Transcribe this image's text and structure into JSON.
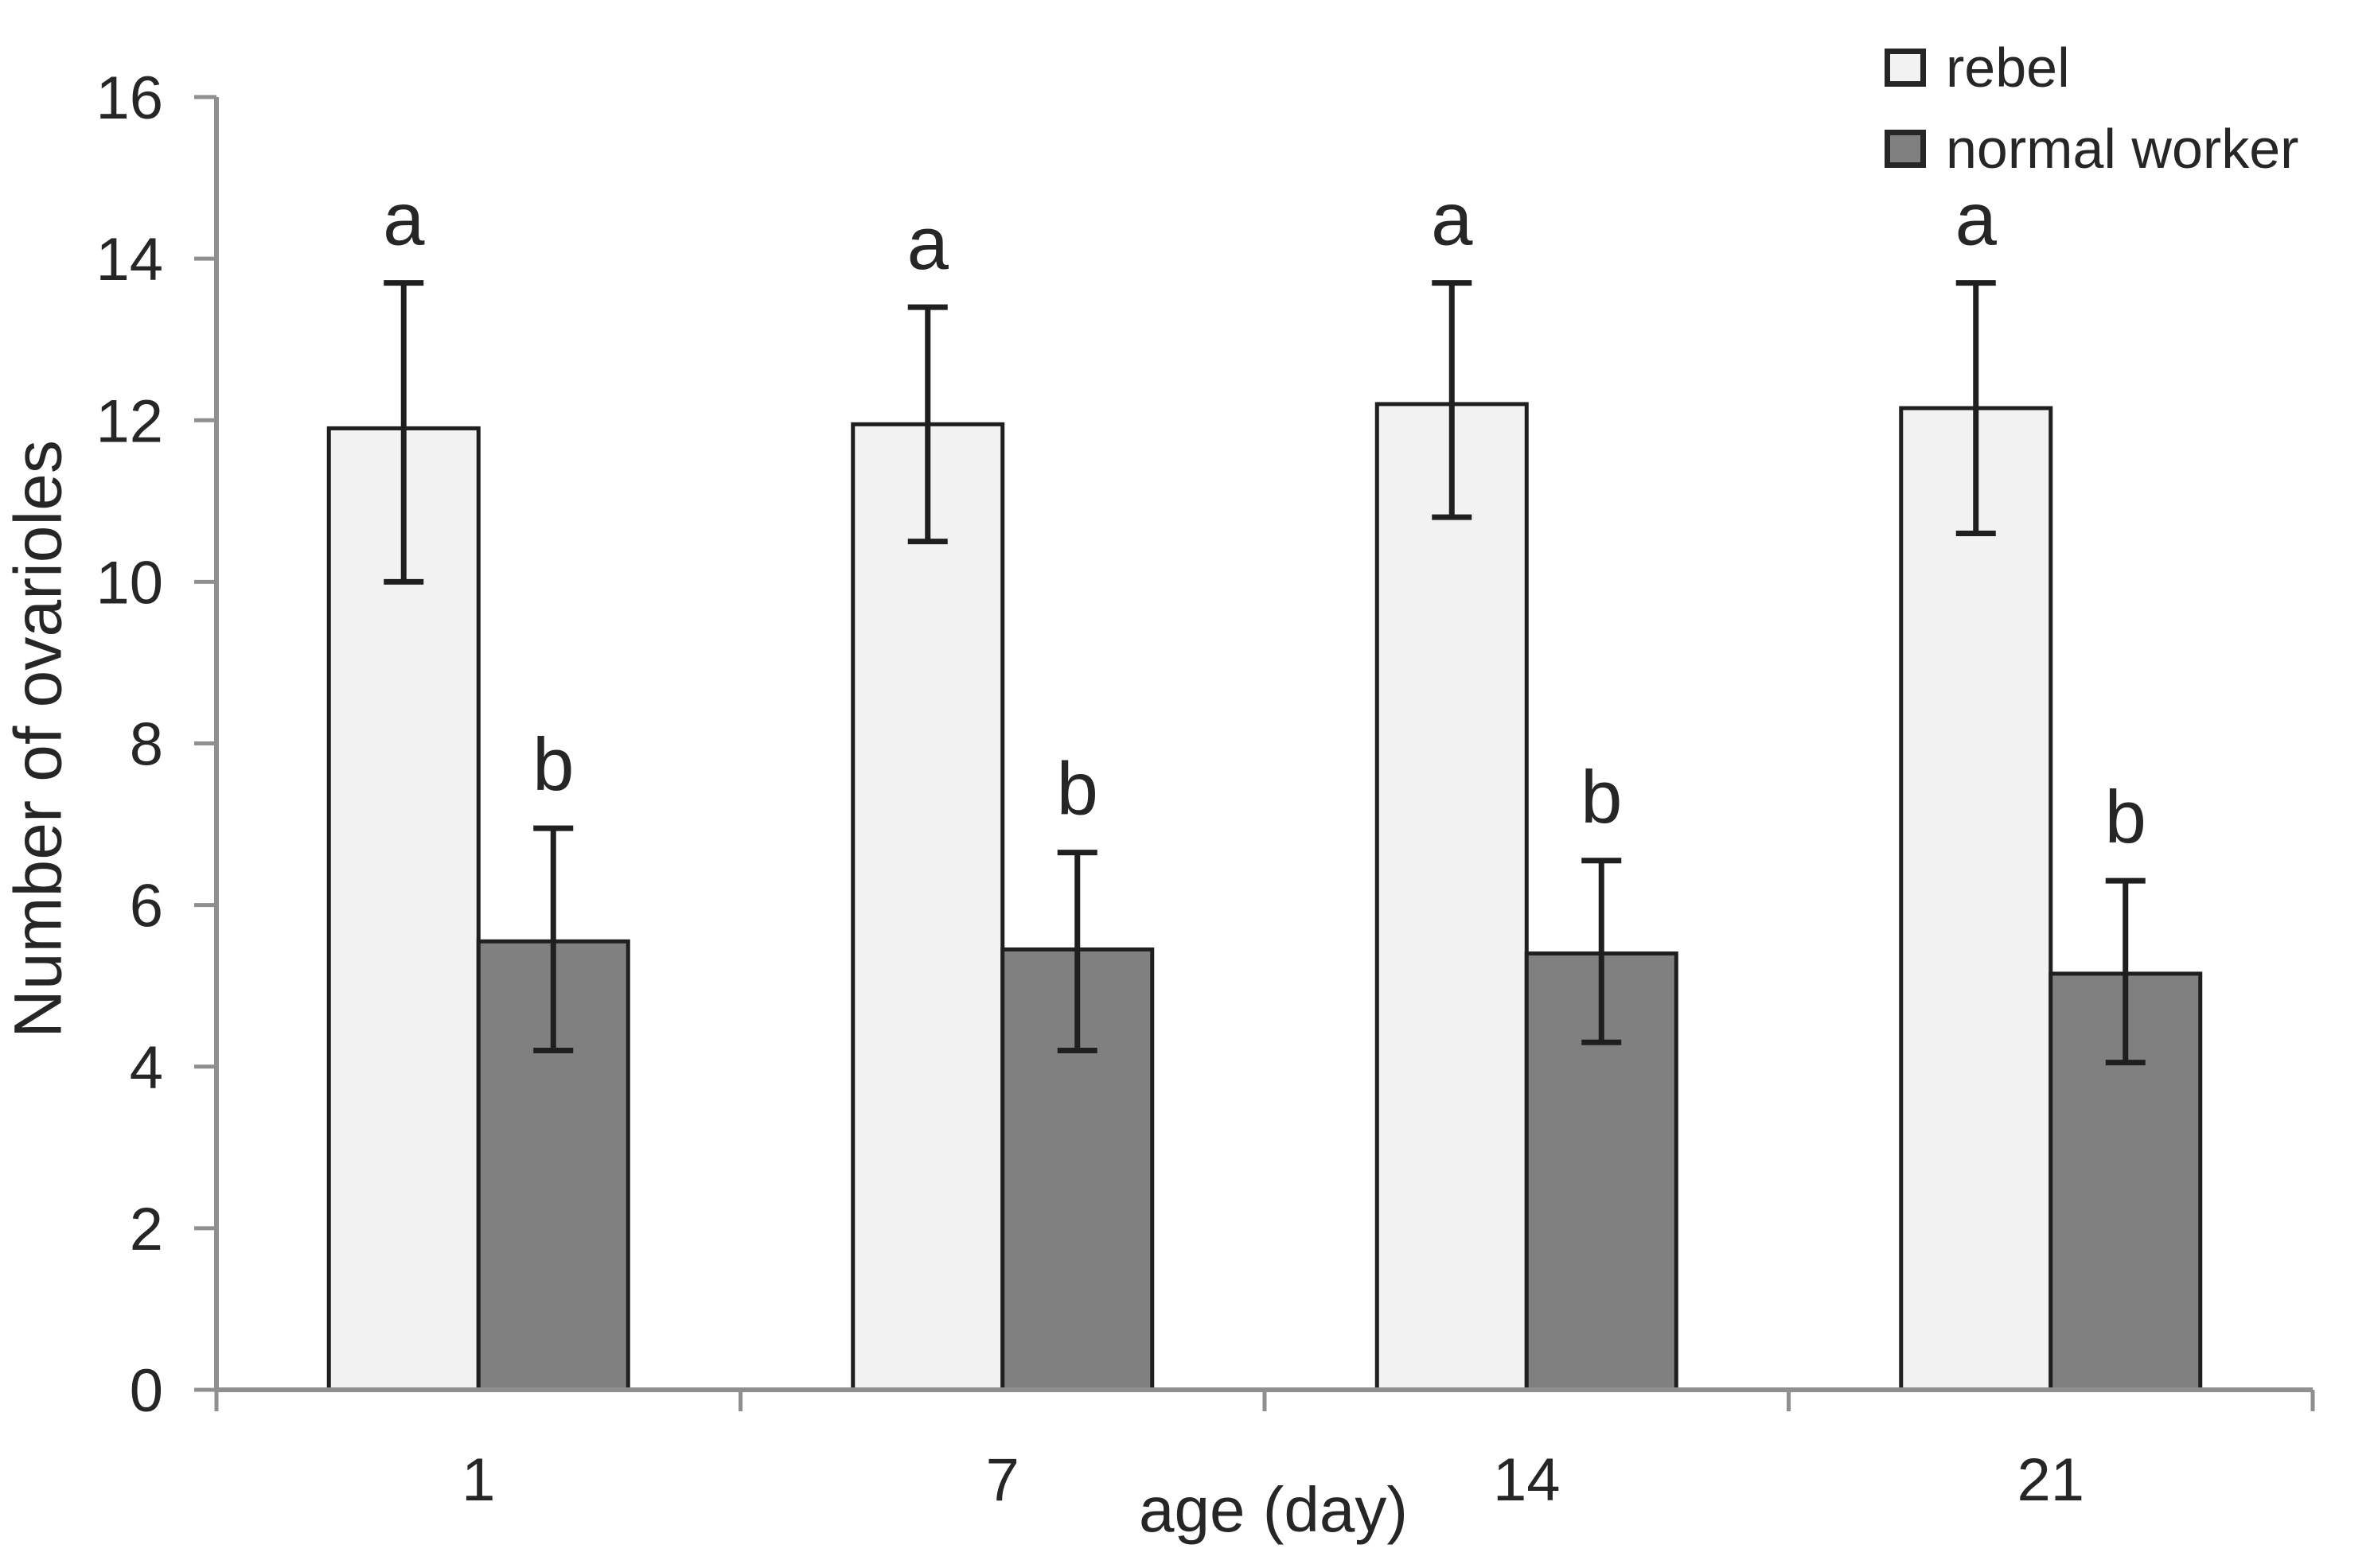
{
  "chart_data": {
    "type": "bar",
    "title": "",
    "xlabel": "age (day)",
    "ylabel": "Number of ovarioles",
    "categories": [
      "1",
      "7",
      "14",
      "21"
    ],
    "ylim": [
      0,
      16
    ],
    "ytick_step": 2,
    "grid": false,
    "legend_position": "top-right",
    "axis_color": "#8f8f8f",
    "text_color": "#262626",
    "bar_outline_color": "#1f1f1f",
    "series": [
      {
        "name": "rebel",
        "fill": "#f2f2f2",
        "values": [
          11.9,
          11.95,
          12.2,
          12.15
        ],
        "err_low": [
          10.0,
          10.5,
          10.8,
          10.6
        ],
        "err_high": [
          13.7,
          13.4,
          13.7,
          13.7
        ],
        "sig_letters": [
          "a",
          "a",
          "a",
          "a"
        ]
      },
      {
        "name": "normal worker",
        "fill": "#808080",
        "values": [
          5.55,
          5.45,
          5.4,
          5.15
        ],
        "err_low": [
          4.2,
          4.2,
          4.3,
          4.05
        ],
        "err_high": [
          6.95,
          6.65,
          6.55,
          6.3
        ],
        "sig_letters": [
          "b",
          "b",
          "b",
          "b"
        ]
      }
    ]
  }
}
